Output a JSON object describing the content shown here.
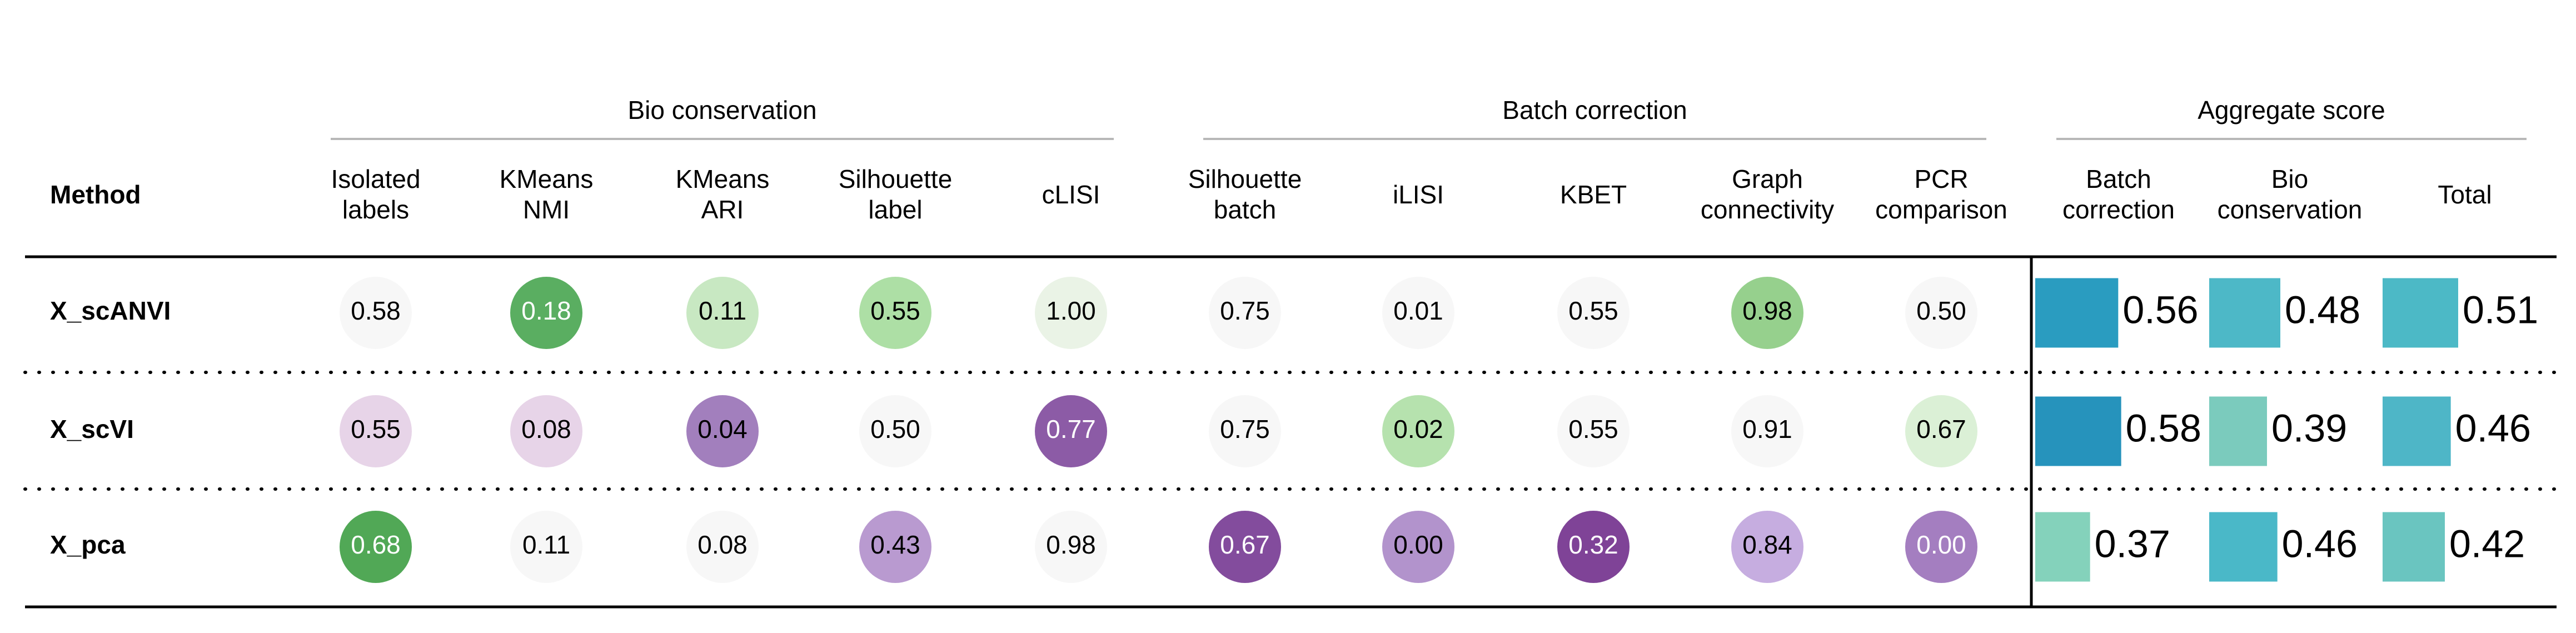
{
  "chart_data": {
    "type": "table",
    "method_header": "Method",
    "groups": [
      {
        "title": "Bio conservation",
        "columns": [
          0,
          1,
          2,
          3,
          4
        ]
      },
      {
        "title": "Batch correction",
        "columns": [
          5,
          6,
          7,
          8,
          9
        ]
      },
      {
        "title": "Aggregate score",
        "columns": [
          10,
          11,
          12
        ]
      }
    ],
    "columns": [
      {
        "label": [
          "Isolated",
          "labels"
        ],
        "kind": "circle"
      },
      {
        "label": [
          "KMeans",
          "NMI"
        ],
        "kind": "circle"
      },
      {
        "label": [
          "KMeans",
          "ARI"
        ],
        "kind": "circle"
      },
      {
        "label": [
          "Silhouette",
          "label"
        ],
        "kind": "circle"
      },
      {
        "label": [
          "cLISI"
        ],
        "kind": "circle"
      },
      {
        "label": [
          "Silhouette",
          "batch"
        ],
        "kind": "circle"
      },
      {
        "label": [
          "iLISI"
        ],
        "kind": "circle"
      },
      {
        "label": [
          "KBET"
        ],
        "kind": "circle"
      },
      {
        "label": [
          "Graph",
          "connectivity"
        ],
        "kind": "circle"
      },
      {
        "label": [
          "PCR",
          "comparison"
        ],
        "kind": "circle"
      },
      {
        "label": [
          "Batch",
          "correction"
        ],
        "kind": "bar"
      },
      {
        "label": [
          "Bio",
          "conservation"
        ],
        "kind": "bar"
      },
      {
        "label": [
          "Total"
        ],
        "kind": "bar"
      }
    ],
    "rows": [
      {
        "method": "X_scANVI",
        "values": [
          "0.58",
          "0.18",
          "0.11",
          "0.55",
          "1.00",
          "0.75",
          "0.01",
          "0.55",
          "0.98",
          "0.50",
          "0.56",
          "0.48",
          "0.51"
        ],
        "colors": [
          "#f7f7f7",
          "#5aae61",
          "#c8e8c2",
          "#addfa5",
          "#eaf3e6",
          "#f7f7f7",
          "#f7f7f7",
          "#f7f7f7",
          "#96d08d",
          "#f7f7f7",
          "#2a9cc0",
          "#4db8c7",
          "#4cb9c6"
        ],
        "text_colors": [
          "#000000",
          "#ffffff",
          "#000000",
          "#000000",
          "#000000",
          "#000000",
          "#000000",
          "#000000",
          "#000000",
          "#000000",
          "#000000",
          "#000000",
          "#000000"
        ]
      },
      {
        "method": "X_scVI",
        "values": [
          "0.55",
          "0.08",
          "0.04",
          "0.50",
          "0.77",
          "0.75",
          "0.02",
          "0.55",
          "0.91",
          "0.67",
          "0.58",
          "0.39",
          "0.46"
        ],
        "colors": [
          "#e7d4e8",
          "#e7d4e8",
          "#a27fbd",
          "#f7f7f7",
          "#8c5ba6",
          "#f7f7f7",
          "#b6e2ae",
          "#f7f7f7",
          "#f7f7f7",
          "#dbf0d6",
          "#2693bc",
          "#7bcbbd",
          "#4eb6c7"
        ],
        "text_colors": [
          "#000000",
          "#000000",
          "#000000",
          "#000000",
          "#ffffff",
          "#000000",
          "#000000",
          "#000000",
          "#000000",
          "#000000",
          "#000000",
          "#000000",
          "#000000"
        ]
      },
      {
        "method": "X_pca",
        "values": [
          "0.68",
          "0.11",
          "0.08",
          "0.43",
          "0.98",
          "0.67",
          "0.00",
          "0.32",
          "0.84",
          "0.00",
          "0.37",
          "0.46",
          "0.42"
        ],
        "colors": [
          "#51a856",
          "#f7f7f7",
          "#f7f7f7",
          "#b99ad0",
          "#f7f7f7",
          "#834c9d",
          "#b293cc",
          "#7f4397",
          "#c6ade0",
          "#a47ec0",
          "#84d2bb",
          "#4ab8c8",
          "#6ac5c0"
        ],
        "text_colors": [
          "#ffffff",
          "#000000",
          "#000000",
          "#000000",
          "#000000",
          "#ffffff",
          "#000000",
          "#ffffff",
          "#000000",
          "#ffffff",
          "#000000",
          "#000000",
          "#000000"
        ]
      }
    ]
  }
}
